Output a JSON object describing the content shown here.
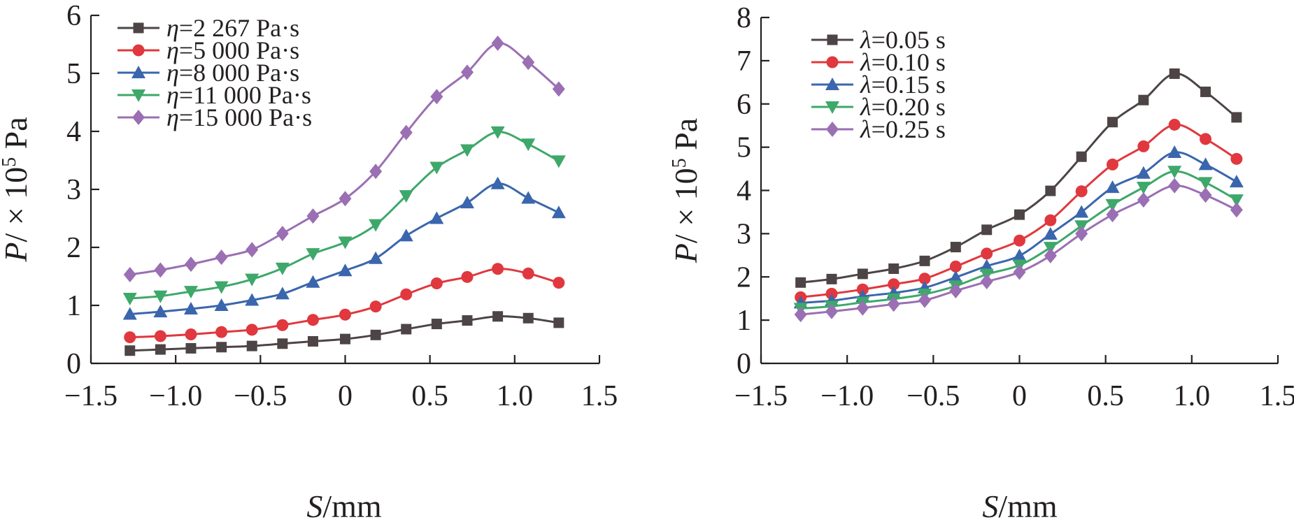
{
  "chart_data": [
    {
      "type": "line",
      "xlabel": "S/mm",
      "ylabel": "P/ × 10^5 Pa",
      "xlim": [
        -1.5,
        1.5
      ],
      "ylim": [
        0,
        6
      ],
      "xticks": [
        "−1.5",
        "−1.0",
        "−0.5",
        "0",
        "0.5",
        "1.0",
        "1.5"
      ],
      "yticks": [
        "0",
        "1",
        "2",
        "3",
        "4",
        "5",
        "6"
      ],
      "legend_position": "top-left",
      "x": [
        -1.27,
        -1.09,
        -0.91,
        -0.73,
        -0.55,
        -0.37,
        -0.19,
        0.0,
        0.18,
        0.36,
        0.54,
        0.72,
        0.9,
        1.08,
        1.26
      ],
      "series": [
        {
          "name": "η=2 267 Pa·s",
          "color": "#4d4446",
          "marker": "square",
          "values": [
            0.22,
            0.24,
            0.26,
            0.28,
            0.3,
            0.34,
            0.38,
            0.42,
            0.49,
            0.59,
            0.68,
            0.74,
            0.81,
            0.78,
            0.7
          ]
        },
        {
          "name": "η=5 000 Pa·s",
          "color": "#e0383e",
          "marker": "circle",
          "values": [
            0.45,
            0.47,
            0.5,
            0.54,
            0.58,
            0.66,
            0.75,
            0.84,
            0.98,
            1.19,
            1.38,
            1.49,
            1.63,
            1.55,
            1.39
          ]
        },
        {
          "name": "η=8 000 Pa·s",
          "color": "#3a66ad",
          "marker": "triangle-up",
          "values": [
            0.85,
            0.89,
            0.94,
            1.0,
            1.09,
            1.2,
            1.4,
            1.6,
            1.81,
            2.2,
            2.5,
            2.77,
            3.1,
            2.85,
            2.6
          ]
        },
        {
          "name": "η=11 000 Pa·s",
          "color": "#3ea86a",
          "marker": "triangle-down",
          "values": [
            1.12,
            1.16,
            1.24,
            1.32,
            1.45,
            1.64,
            1.89,
            2.09,
            2.39,
            2.89,
            3.38,
            3.68,
            3.99,
            3.78,
            3.49
          ]
        },
        {
          "name": "η=15 000 Pa·s",
          "color": "#9b6fb3",
          "marker": "diamond",
          "values": [
            1.53,
            1.61,
            1.71,
            1.83,
            1.96,
            2.24,
            2.54,
            2.84,
            3.31,
            3.98,
            4.6,
            5.02,
            5.52,
            5.19,
            4.73
          ]
        }
      ]
    },
    {
      "type": "line",
      "xlabel": "S/mm",
      "ylabel": "P/ × 10^5 Pa",
      "xlim": [
        -1.5,
        1.5
      ],
      "ylim": [
        0,
        8
      ],
      "xticks": [
        "−1.5",
        "−1.0",
        "−0.5",
        "0",
        "0.5",
        "1.0",
        "1.5"
      ],
      "yticks": [
        "0",
        "1",
        "2",
        "3",
        "4",
        "5",
        "6",
        "7",
        "8"
      ],
      "legend_position": "top-left",
      "x": [
        -1.27,
        -1.09,
        -0.91,
        -0.73,
        -0.55,
        -0.37,
        -0.19,
        0.0,
        0.18,
        0.36,
        0.54,
        0.72,
        0.9,
        1.08,
        1.26
      ],
      "series": [
        {
          "name": "λ=0.05 s",
          "color": "#4d4446",
          "marker": "square",
          "values": [
            1.87,
            1.95,
            2.07,
            2.19,
            2.37,
            2.69,
            3.09,
            3.44,
            3.99,
            4.78,
            5.58,
            6.09,
            6.7,
            6.28,
            5.69
          ]
        },
        {
          "name": "λ=0.10 s",
          "color": "#e0383e",
          "marker": "circle",
          "values": [
            1.53,
            1.61,
            1.71,
            1.83,
            1.96,
            2.24,
            2.54,
            2.84,
            3.31,
            3.98,
            4.6,
            5.02,
            5.52,
            5.19,
            4.73
          ]
        },
        {
          "name": "λ=0.15 s",
          "color": "#3a66ad",
          "marker": "triangle-up",
          "values": [
            1.4,
            1.45,
            1.55,
            1.63,
            1.75,
            1.99,
            2.25,
            2.49,
            2.99,
            3.5,
            4.07,
            4.4,
            4.88,
            4.6,
            4.2
          ]
        },
        {
          "name": "λ=0.20 s",
          "color": "#3ea86a",
          "marker": "triangle-down",
          "values": [
            1.27,
            1.32,
            1.41,
            1.49,
            1.6,
            1.79,
            2.06,
            2.27,
            2.68,
            3.18,
            3.67,
            4.07,
            4.44,
            4.18,
            3.78
          ]
        },
        {
          "name": "λ=0.25 s",
          "color": "#9b6fb3",
          "marker": "diamond",
          "values": [
            1.13,
            1.2,
            1.28,
            1.37,
            1.46,
            1.68,
            1.89,
            2.11,
            2.49,
            3.0,
            3.44,
            3.78,
            4.11,
            3.89,
            3.55
          ]
        }
      ]
    }
  ]
}
